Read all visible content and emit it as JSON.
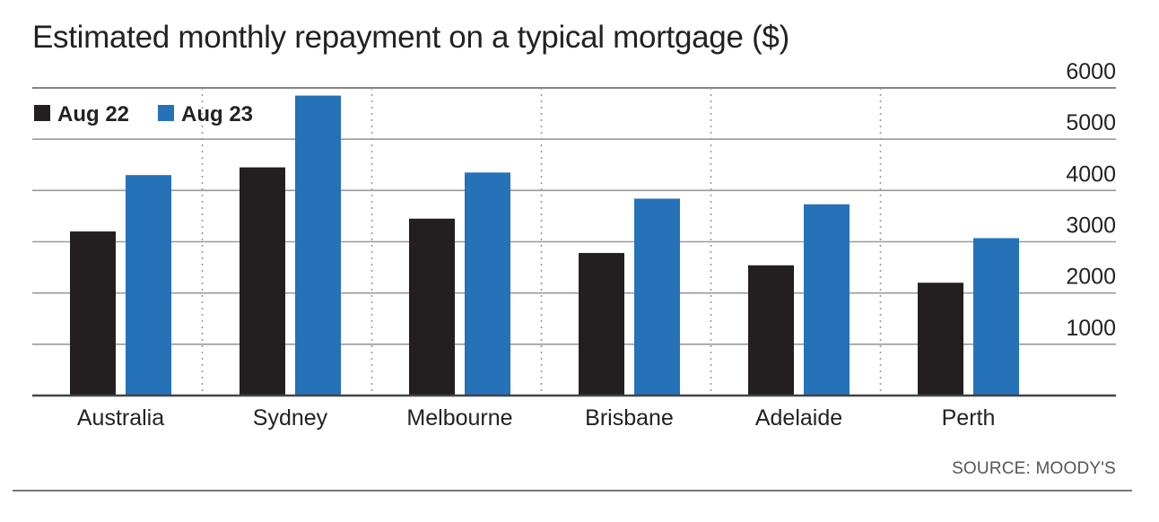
{
  "chart_data": {
    "type": "bar",
    "title": "Estimated monthly repayment on a typical mortgage ($)",
    "xlabel": "",
    "ylabel": "",
    "categories": [
      "Australia",
      "Sydney",
      "Melbourne",
      "Brisbane",
      "Adelaide",
      "Perth"
    ],
    "series": [
      {
        "name": "Aug 22",
        "color": "#231f20",
        "values": [
          3200,
          4450,
          3450,
          2780,
          2540,
          2200
        ]
      },
      {
        "name": "Aug 23",
        "color": "#2572b9",
        "values": [
          4300,
          5850,
          4350,
          3840,
          3730,
          3070
        ]
      }
    ],
    "ylim": [
      0,
      6000
    ],
    "yticks": [
      1000,
      2000,
      3000,
      4000,
      5000,
      6000
    ],
    "y_axis_position": "right",
    "grid": true,
    "legend_position": "top-left",
    "source": "SOURCE: MOODY'S"
  }
}
